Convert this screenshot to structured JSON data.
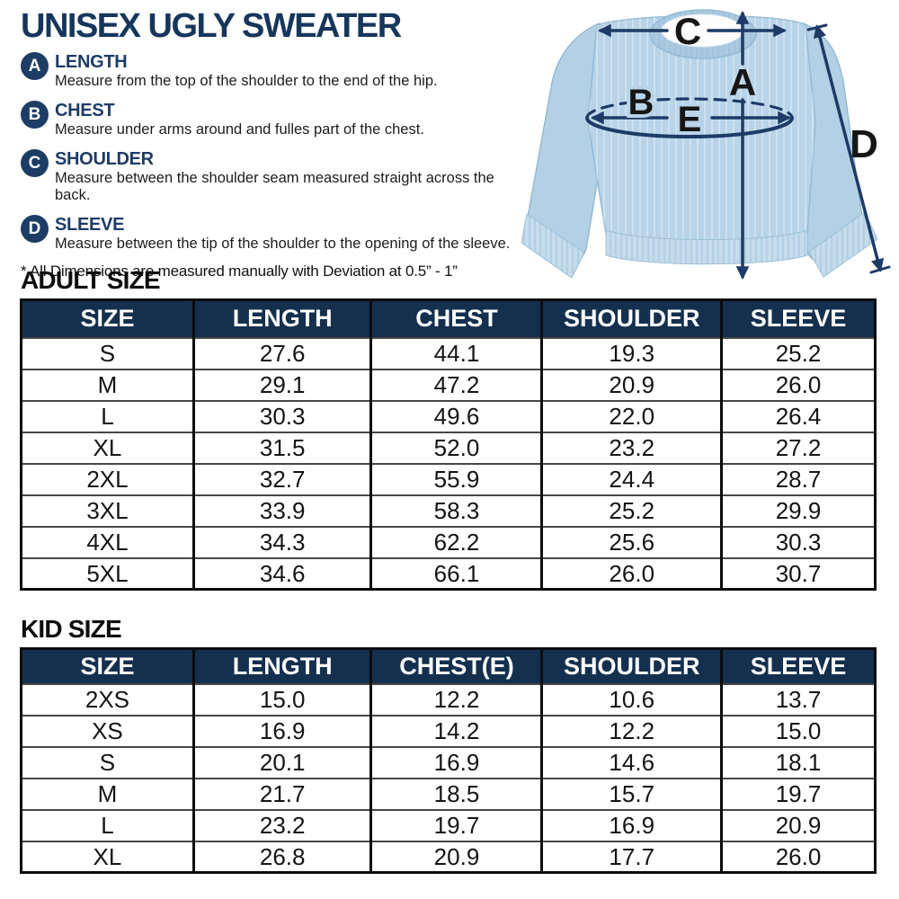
{
  "header": {
    "title": "UNISEX UGLY SWEATER",
    "note": "* All Dimensions are measured manually with Deviation at 0.5” - 1”"
  },
  "legend": {
    "items": [
      {
        "letter": "A",
        "label": "LENGTH",
        "description": "Measure from the top of the shoulder to the end of the hip."
      },
      {
        "letter": "B",
        "label": "CHEST",
        "description": "Measure under arms around and fulles part of the chest."
      },
      {
        "letter": "C",
        "label": "SHOULDER",
        "description": "Measure between the shoulder seam measured straight across the back."
      },
      {
        "letter": "D",
        "label": "SLEEVE",
        "description": "Measure between the tip of the shoulder to the opening of the sleeve."
      }
    ]
  },
  "diagram": {
    "label_a": "A",
    "label_b": "B",
    "label_c": "C",
    "label_d": "D",
    "label_e": "E"
  },
  "adult_table": {
    "heading": "ADULT SIZE",
    "columns": [
      "SIZE",
      "LENGTH",
      "CHEST",
      "SHOULDER",
      "SLEEVE"
    ],
    "rows": [
      [
        "S",
        "27.6",
        "44.1",
        "19.3",
        "25.2"
      ],
      [
        "M",
        "29.1",
        "47.2",
        "20.9",
        "26.0"
      ],
      [
        "L",
        "30.3",
        "49.6",
        "22.0",
        "26.4"
      ],
      [
        "XL",
        "31.5",
        "52.0",
        "23.2",
        "27.2"
      ],
      [
        "2XL",
        "32.7",
        "55.9",
        "24.4",
        "28.7"
      ],
      [
        "3XL",
        "33.9",
        "58.3",
        "25.2",
        "29.9"
      ],
      [
        "4XL",
        "34.3",
        "62.2",
        "25.6",
        "30.3"
      ],
      [
        "5XL",
        "34.6",
        "66.1",
        "26.0",
        "30.7"
      ]
    ]
  },
  "kid_table": {
    "heading": "KID SIZE",
    "columns": [
      "SIZE",
      "LENGTH",
      "CHEST(E)",
      "SHOULDER",
      "SLEEVE"
    ],
    "rows": [
      [
        "2XS",
        "15.0",
        "12.2",
        "10.6",
        "13.7"
      ],
      [
        "XS",
        "16.9",
        "14.2",
        "12.2",
        "15.0"
      ],
      [
        "S",
        "20.1",
        "16.9",
        "14.6",
        "18.1"
      ],
      [
        "M",
        "21.7",
        "18.5",
        "15.7",
        "19.7"
      ],
      [
        "L",
        "23.2",
        "19.7",
        "16.9",
        "20.9"
      ],
      [
        "XL",
        "26.8",
        "20.9",
        "17.7",
        "26.0"
      ]
    ]
  },
  "colors": {
    "title_navy": "#16365c",
    "badge_navy": "#1d3c66",
    "table_header_bg": "#15304e",
    "table_header_text": "#ffffff",
    "arrow_navy": "#1e3a66",
    "sweater_body": "#b9d4e8",
    "sweater_rib": "#c6dcec",
    "text_dark": "#141414"
  }
}
